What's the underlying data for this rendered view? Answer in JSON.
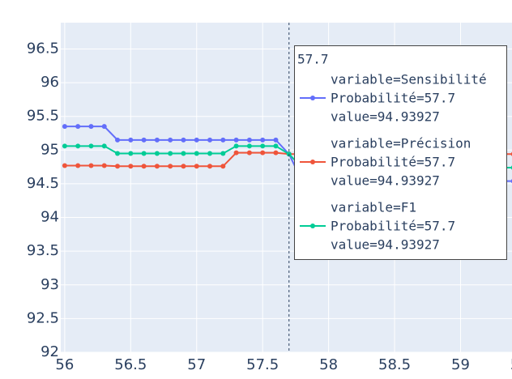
{
  "chart_data": {
    "type": "line",
    "x": [
      56,
      56.1,
      56.2,
      56.3,
      56.4,
      56.5,
      56.6,
      56.7,
      56.8,
      56.9,
      57,
      57.1,
      57.2,
      57.3,
      57.4,
      57.5,
      57.6,
      57.7,
      57.8,
      57.9,
      58,
      58.1,
      58.2,
      58.3,
      58.4,
      58.5,
      58.6,
      58.7,
      58.8,
      58.9,
      59,
      59.1,
      59.2,
      59.3,
      59.4
    ],
    "series": [
      {
        "name": "Sensibilité",
        "color": "#636efa",
        "values": [
          95.35,
          95.35,
          95.35,
          95.35,
          95.15,
          95.15,
          95.15,
          95.15,
          95.15,
          95.15,
          95.15,
          95.15,
          95.15,
          95.15,
          95.15,
          95.15,
          95.15,
          94.94,
          94.54,
          94.54,
          94.54,
          94.54,
          94.54,
          94.54,
          94.54,
          94.54,
          94.54,
          94.54,
          94.54,
          94.54,
          94.54,
          94.54,
          94.54,
          94.54,
          94.54
        ]
      },
      {
        "name": "Précision",
        "color": "#EF553B",
        "values": [
          94.77,
          94.77,
          94.77,
          94.77,
          94.76,
          94.76,
          94.76,
          94.76,
          94.76,
          94.76,
          94.76,
          94.76,
          94.76,
          94.96,
          94.96,
          94.96,
          94.96,
          94.94,
          94.94,
          94.94,
          94.94,
          94.94,
          94.94,
          94.94,
          94.94,
          94.94,
          94.94,
          94.94,
          94.94,
          94.94,
          94.94,
          94.94,
          94.94,
          94.94,
          94.94
        ]
      },
      {
        "name": "F1",
        "color": "#00cc96",
        "values": [
          95.06,
          95.06,
          95.06,
          95.06,
          94.95,
          94.95,
          94.95,
          94.95,
          94.95,
          94.95,
          94.95,
          94.95,
          94.95,
          95.06,
          95.06,
          95.06,
          95.06,
          94.94,
          94.74,
          94.74,
          94.74,
          94.74,
          94.74,
          94.74,
          94.74,
          94.74,
          94.74,
          94.74,
          94.74,
          94.74,
          94.74,
          94.74,
          94.74,
          94.74,
          94.74
        ]
      }
    ],
    "xlim": [
      55.97,
      59.39
    ],
    "ylim": [
      92,
      96.89
    ],
    "xticks": [
      56,
      56.5,
      57,
      57.5,
      58,
      58.5,
      59,
      59.5
    ],
    "yticks": [
      92,
      92.5,
      93,
      93.5,
      94,
      94.5,
      95,
      95.5,
      96,
      96.5
    ],
    "grid": true,
    "hover": {
      "x": 57.7,
      "header": "57.7",
      "entries": [
        {
          "lines": [
            "variable=Sensibilité",
            "Probabilité=57.7",
            "value=94.93927"
          ]
        },
        {
          "lines": [
            "variable=Précision",
            "Probabilité=57.7",
            "value=94.93927"
          ]
        },
        {
          "lines": [
            "variable=F1",
            "Probabilité=57.7",
            "value=94.93927"
          ]
        }
      ]
    }
  }
}
